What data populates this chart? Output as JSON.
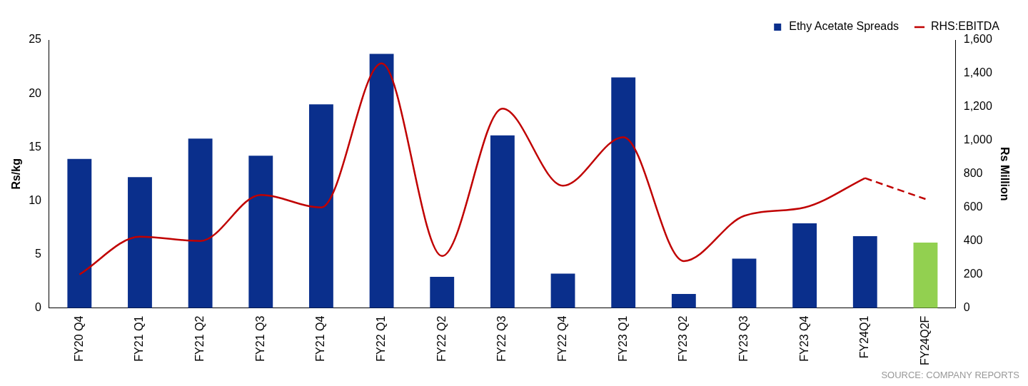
{
  "chart_data": {
    "type": "bar",
    "ylabel": "Rs/kg",
    "y2label": "Rs Million",
    "categories": [
      "FY20 Q4",
      "FY21 Q1",
      "FY21 Q2",
      "FY21 Q3",
      "FY21 Q4",
      "FY22 Q1",
      "FY22 Q2",
      "FY22 Q3",
      "FY22 Q4",
      "FY23 Q1",
      "FY23 Q2",
      "FY23 Q3",
      "FY23 Q4",
      "FY24Q1",
      "FY24Q2F"
    ],
    "series": [
      {
        "name": "Ethy Acetate Spreads",
        "color": "#0a2f8c",
        "colors": [
          "#0a2f8c",
          "#0a2f8c",
          "#0a2f8c",
          "#0a2f8c",
          "#0a2f8c",
          "#0a2f8c",
          "#0a2f8c",
          "#0a2f8c",
          "#0a2f8c",
          "#0a2f8c",
          "#0a2f8c",
          "#0a2f8c",
          "#0a2f8c",
          "#0a2f8c",
          "#92d050"
        ],
        "values": [
          13.9,
          12.2,
          15.8,
          14.2,
          19.0,
          23.7,
          2.9,
          16.1,
          3.2,
          21.5,
          1.3,
          4.6,
          7.9,
          6.7,
          6.1
        ]
      },
      {
        "type": "line",
        "name": "RHS:EBITDA",
        "color": "#c00000",
        "axis": "y2",
        "line_style": "solid",
        "values": [
          200,
          425,
          400,
          675,
          600,
          1460,
          310,
          1190,
          730,
          1020,
          280,
          550,
          600,
          775,
          null
        ]
      },
      {
        "type": "line",
        "color": "#c00000",
        "axis": "y2",
        "line_style": "dashed",
        "values": [
          null,
          null,
          null,
          null,
          null,
          null,
          null,
          null,
          null,
          null,
          null,
          null,
          null,
          775,
          650
        ]
      }
    ],
    "ylim": [
      0,
      25
    ],
    "yticks": [
      0,
      5,
      10,
      15,
      20,
      25
    ],
    "y2lim": [
      0,
      1600
    ],
    "y2ticks": [
      {
        "value": 0,
        "label": "0"
      },
      {
        "value": 200,
        "label": "200"
      },
      {
        "value": 400,
        "label": "400"
      },
      {
        "value": 600,
        "label": "600"
      },
      {
        "value": 800,
        "label": "800"
      },
      {
        "value": 1000,
        "label": "1,000"
      },
      {
        "value": 1200,
        "label": "1,200"
      },
      {
        "value": 1400,
        "label": "1,400"
      },
      {
        "value": 1600,
        "label": "1,600"
      }
    ],
    "grid": false,
    "legend": "top right",
    "marker": "none",
    "annotations": [
      "SOURCE: COMPANY REPORTS"
    ]
  }
}
